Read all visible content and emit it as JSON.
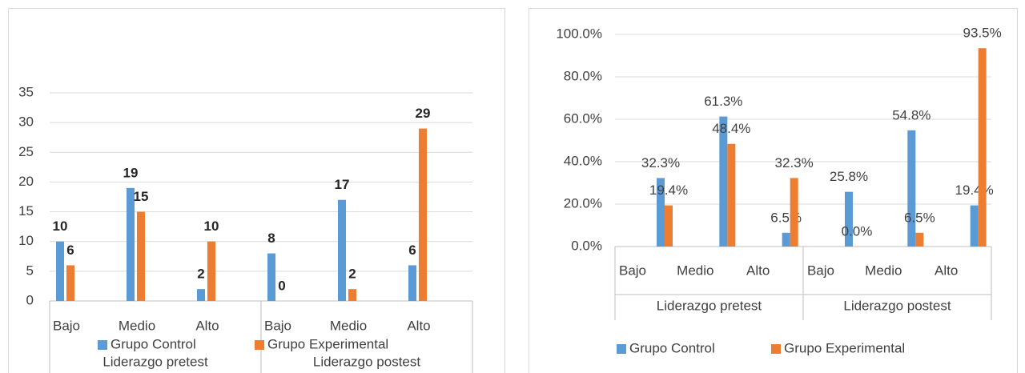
{
  "chart_data": [
    {
      "type": "bar",
      "categories": [
        "Bajo",
        "Medio",
        "Alto",
        "Bajo",
        "Medio",
        "Alto"
      ],
      "group_labels": [
        "Liderazgo pretest",
        "Liderazgo postest"
      ],
      "series": [
        {
          "name": "Grupo Control",
          "color": "#5b9bd5",
          "values": [
            10,
            19,
            2,
            8,
            17,
            6
          ]
        },
        {
          "name": "Grupo Experimental",
          "color": "#ed7d31",
          "values": [
            6,
            15,
            10,
            0,
            2,
            29
          ]
        }
      ],
      "ylim": [
        0,
        35
      ],
      "yticks": [
        0,
        5,
        10,
        15,
        20,
        25,
        30,
        35
      ],
      "grid": true
    },
    {
      "type": "bar",
      "categories": [
        "Bajo",
        "Medio",
        "Alto",
        "Bajo",
        "Medio",
        "Alto"
      ],
      "group_labels": [
        "Liderazgo pretest",
        "Liderazgo postest"
      ],
      "series": [
        {
          "name": "Grupo Control",
          "color": "#5b9bd5",
          "values": [
            32.3,
            61.3,
            6.5,
            25.8,
            54.8,
            19.4
          ],
          "value_labels": [
            "32.3%",
            "61.3%",
            "6.5%",
            "25.8%",
            "54.8%",
            "19.4%"
          ]
        },
        {
          "name": "Grupo Experimental",
          "color": "#ed7d31",
          "values": [
            19.4,
            48.4,
            32.3,
            0.0,
            6.5,
            93.5
          ],
          "value_labels": [
            "19.4%",
            "48.4%",
            "32.3%",
            "0.0%",
            "6.5%",
            "93.5%"
          ]
        }
      ],
      "ylim": [
        0,
        100
      ],
      "yticks": [
        {
          "value": 0,
          "label": "0.0%"
        },
        {
          "value": 20,
          "label": "20.0%"
        },
        {
          "value": 40,
          "label": "40.0%"
        },
        {
          "value": 60,
          "label": "60.0%"
        },
        {
          "value": 80,
          "label": "80.0%"
        },
        {
          "value": 100,
          "label": "100.0%"
        }
      ],
      "grid": true
    }
  ]
}
